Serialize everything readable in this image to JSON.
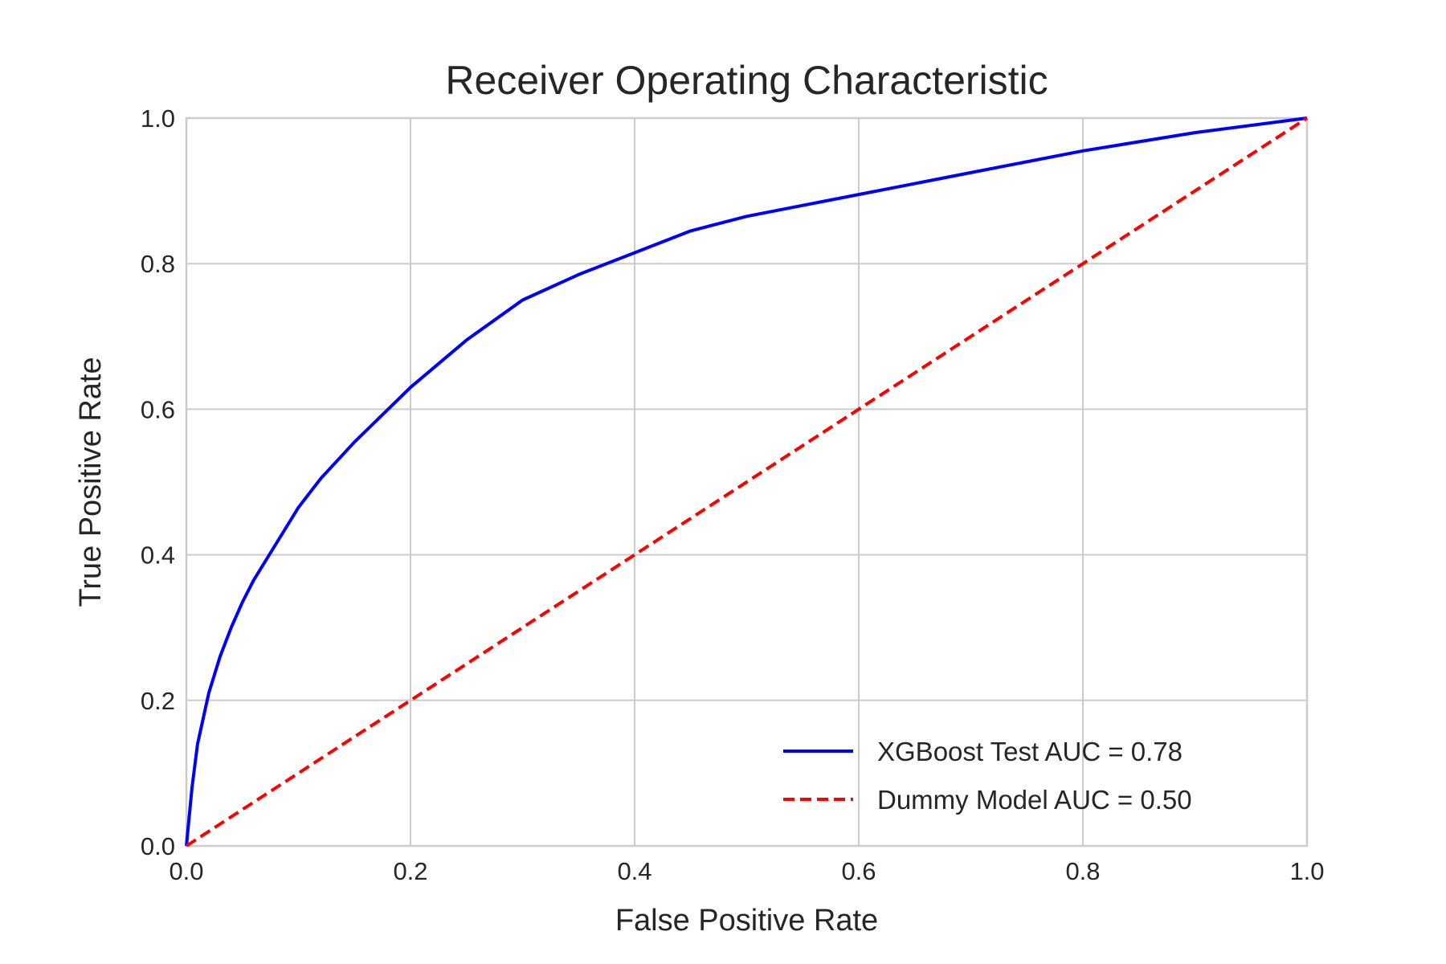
{
  "chart_data": {
    "type": "line",
    "title": "Receiver Operating Characteristic",
    "xlabel": "False Positive Rate",
    "ylabel": "True Positive Rate",
    "xlim": [
      0.0,
      1.0
    ],
    "ylim": [
      0.0,
      1.0
    ],
    "grid": true,
    "legend_position": "lower-right",
    "xticks": [
      "0.0",
      "0.2",
      "0.4",
      "0.6",
      "0.8",
      "1.0"
    ],
    "yticks": [
      "0.0",
      "0.2",
      "0.4",
      "0.6",
      "0.8",
      "1.0"
    ],
    "series": [
      {
        "name": "XGBoost Test AUC = 0.78",
        "color": "#0000ff",
        "style": "solid",
        "x": [
          0.0,
          0.005,
          0.01,
          0.02,
          0.03,
          0.04,
          0.05,
          0.06,
          0.07,
          0.08,
          0.1,
          0.12,
          0.15,
          0.2,
          0.25,
          0.3,
          0.35,
          0.4,
          0.45,
          0.5,
          0.55,
          0.6,
          0.7,
          0.8,
          0.9,
          1.0
        ],
        "y": [
          0.0,
          0.08,
          0.14,
          0.21,
          0.26,
          0.3,
          0.335,
          0.365,
          0.39,
          0.415,
          0.465,
          0.505,
          0.555,
          0.63,
          0.695,
          0.75,
          0.785,
          0.815,
          0.845,
          0.865,
          0.88,
          0.895,
          0.925,
          0.955,
          0.98,
          1.0
        ]
      },
      {
        "name": "Dummy Model AUC = 0.50",
        "color": "#ff0000",
        "style": "dashed",
        "x": [
          0.0,
          1.0
        ],
        "y": [
          0.0,
          1.0
        ]
      }
    ]
  }
}
